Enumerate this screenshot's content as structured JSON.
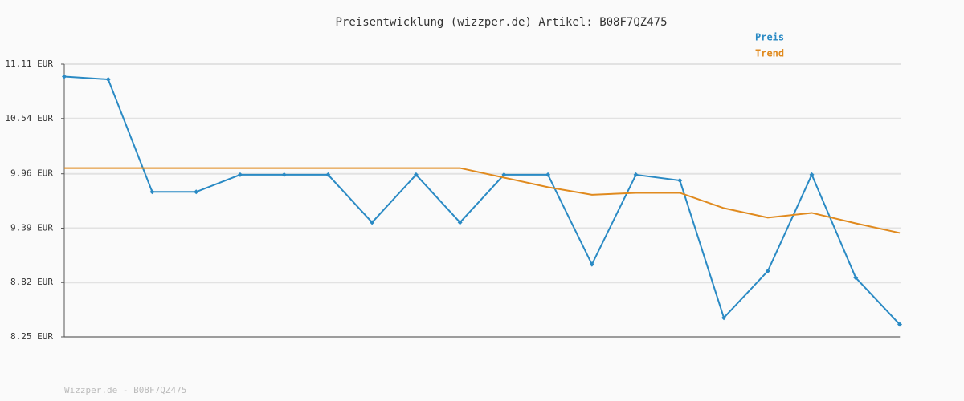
{
  "chart_data": {
    "type": "line",
    "title": "Preisentwicklung (wizzper.de) Artikel: B08F7QZ475",
    "footer": "Wizzper.de - B08F7QZ475",
    "categories": [
      null,
      null,
      null,
      null,
      null,
      null,
      null,
      null,
      null,
      null,
      null,
      null,
      null,
      null,
      null,
      null,
      null,
      null,
      null,
      null
    ],
    "series": [
      {
        "name": "Preis",
        "color": "#2a8ac4",
        "markers": true,
        "values": [
          10.98,
          10.95,
          9.77,
          9.77,
          9.95,
          9.95,
          9.95,
          9.45,
          9.95,
          9.45,
          9.95,
          9.95,
          9.01,
          9.95,
          9.89,
          8.45,
          8.94,
          9.95,
          8.87,
          8.38
        ]
      },
      {
        "name": "Trend",
        "color": "#e08a1e",
        "markers": false,
        "values": [
          10.02,
          10.02,
          10.02,
          10.02,
          10.02,
          10.02,
          10.02,
          10.02,
          10.02,
          10.02,
          9.92,
          9.82,
          9.74,
          9.76,
          9.76,
          9.6,
          9.5,
          9.55,
          9.44,
          9.34
        ]
      }
    ],
    "ylim": [
      8.25,
      11.11
    ],
    "yticks": [
      {
        "value": 8.25,
        "label": "8.25 EUR"
      },
      {
        "value": 8.82,
        "label": "8.82 EUR"
      },
      {
        "value": 9.39,
        "label": "9.39 EUR"
      },
      {
        "value": 9.96,
        "label": "9.96 EUR"
      },
      {
        "value": 10.54,
        "label": "10.54 EUR"
      },
      {
        "value": 11.11,
        "label": "11.11 EUR"
      }
    ],
    "grid": true,
    "legend": "top-right"
  }
}
